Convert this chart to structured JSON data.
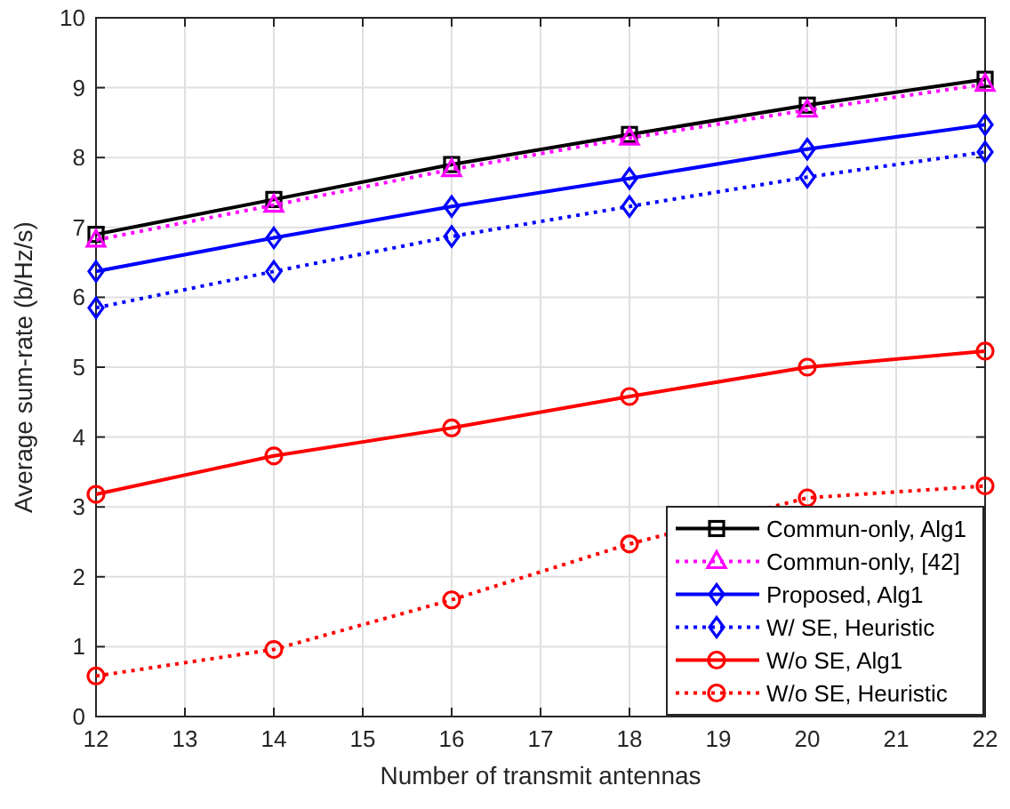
{
  "chart_data": {
    "type": "line",
    "xlabel": "Number of transmit antennas",
    "ylabel": "Average sum-rate (b/Hz/s)",
    "x": [
      12,
      14,
      16,
      18,
      20,
      22
    ],
    "xlim": [
      12,
      22
    ],
    "xticks": [
      12,
      13,
      14,
      15,
      16,
      17,
      18,
      19,
      20,
      21,
      22
    ],
    "ylim": [
      0,
      10
    ],
    "yticks": [
      0,
      1,
      2,
      3,
      4,
      5,
      6,
      7,
      8,
      9,
      10
    ],
    "grid": true,
    "legend": "bottom right",
    "series": [
      {
        "name": "Commun-only, Alg1",
        "color": "#000000",
        "marker": "square",
        "line_style": "solid",
        "values": [
          6.9,
          7.4,
          7.9,
          8.33,
          8.75,
          9.12
        ]
      },
      {
        "name": "Commun-only, [42]",
        "color": "#ff00ff",
        "marker": "triangle",
        "line_style": "dotted",
        "values": [
          6.82,
          7.32,
          7.83,
          8.28,
          8.68,
          9.05
        ]
      },
      {
        "name": "Proposed, Alg1",
        "color": "#0000ff",
        "marker": "diamond",
        "line_style": "solid",
        "values": [
          6.37,
          6.85,
          7.3,
          7.7,
          8.12,
          8.47
        ]
      },
      {
        "name": "W/ SE, Heuristic",
        "color": "#0000ff",
        "marker": "diamond",
        "line_style": "dotted",
        "values": [
          5.85,
          6.37,
          6.87,
          7.3,
          7.72,
          8.08
        ]
      },
      {
        "name": "W/o SE, Alg1",
        "color": "#ff0000",
        "marker": "circle",
        "line_style": "solid",
        "values": [
          3.18,
          3.73,
          4.13,
          4.58,
          5.0,
          5.23
        ]
      },
      {
        "name": "W/o SE, Heuristic",
        "color": "#ff0000",
        "marker": "circle",
        "line_style": "dotted",
        "values": [
          0.58,
          0.96,
          1.67,
          2.47,
          3.13,
          3.3
        ]
      }
    ]
  }
}
